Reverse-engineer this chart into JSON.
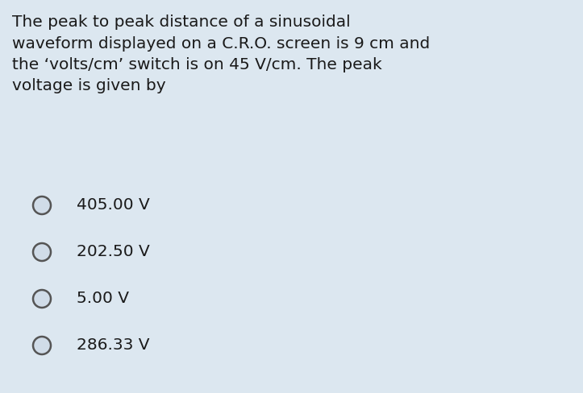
{
  "background_color": "#dce7f0",
  "question_text": "The peak to peak distance of a sinusoidal\nwaveform displayed on a C.R.O. screen is 9 cm and\nthe ‘volts/cm’ switch is on 45 V/cm. The peak\nvoltage is given by",
  "options": [
    "405.00 V",
    "202.50 V",
    "5.00 V",
    "286.33 V"
  ],
  "question_fontsize": 14.5,
  "question_color": "#1a1a1a",
  "option_fontsize": 14.5,
  "option_color": "#1a1a1a",
  "circle_edge_color": "#555555",
  "circle_face_color": "#d0dce8",
  "circle_linewidth": 1.8
}
